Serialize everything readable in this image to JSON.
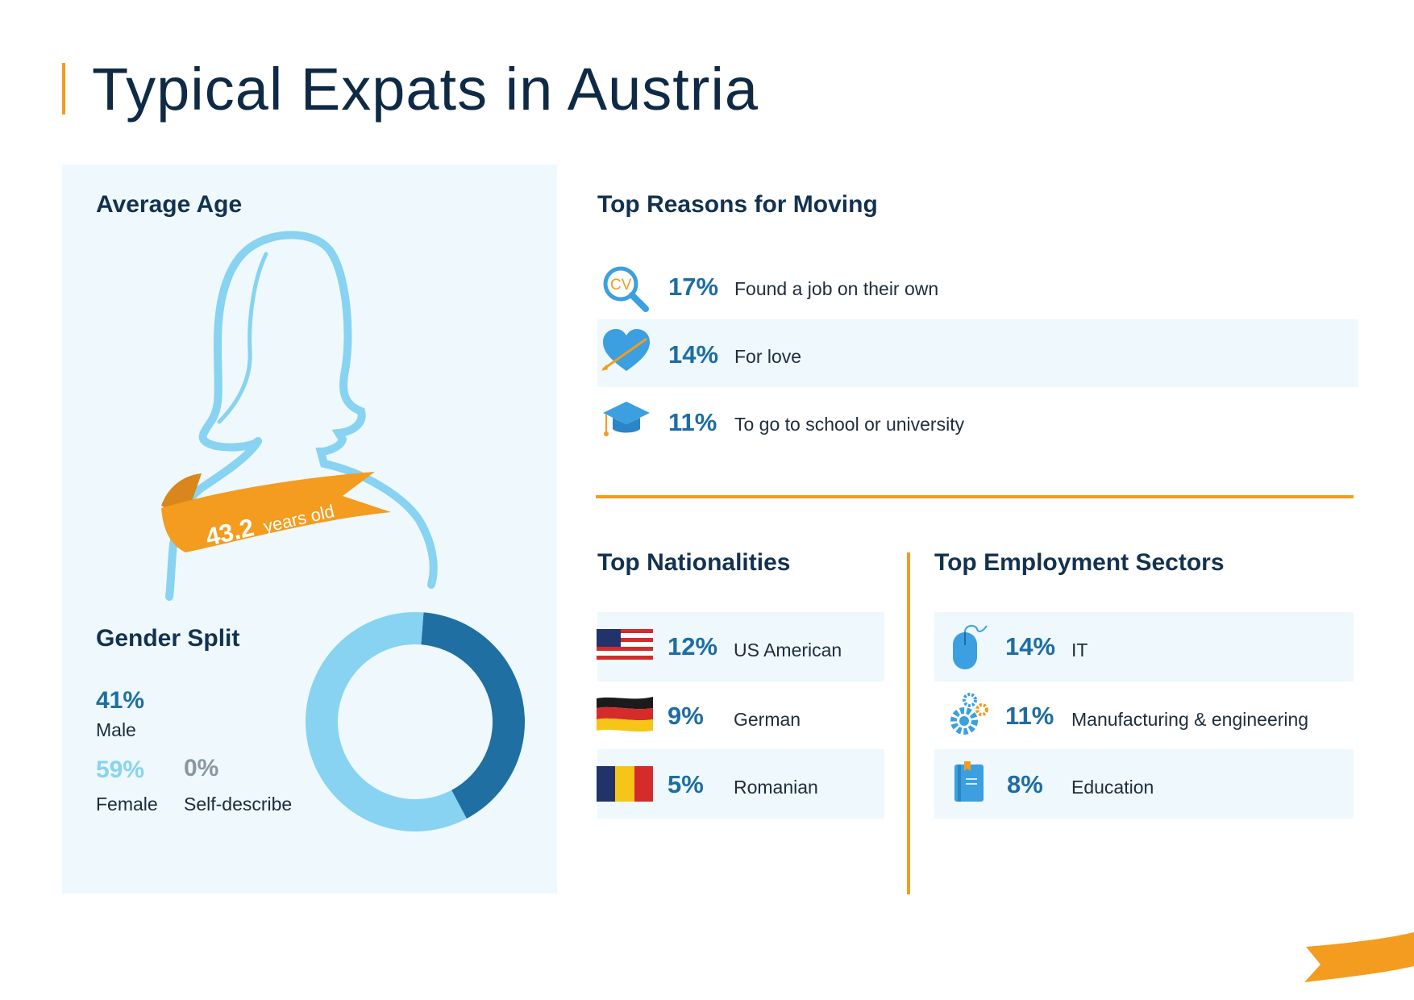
{
  "page": {
    "title": "Typical Expats in Austria"
  },
  "average_age": {
    "heading": "Average Age",
    "value": "43.2",
    "unit": "years old"
  },
  "gender": {
    "heading": "Gender Split",
    "items": [
      {
        "pct": "41%",
        "label": "Male"
      },
      {
        "pct": "59%",
        "label": "Female"
      },
      {
        "pct": "0%",
        "label": "Self-describe"
      }
    ]
  },
  "reasons": {
    "heading": "Top Reasons for Moving",
    "items": [
      {
        "pct": "17%",
        "label": "Found a job on their own",
        "icon": "cv-search-icon"
      },
      {
        "pct": "14%",
        "label": "For love",
        "icon": "heart-arrow-icon"
      },
      {
        "pct": "11%",
        "label": "To go to school or university",
        "icon": "graduation-cap-icon"
      }
    ]
  },
  "nationalities": {
    "heading": "Top Nationalities",
    "items": [
      {
        "pct": "12%",
        "label": "US American",
        "icon": "us-flag-icon"
      },
      {
        "pct": "9%",
        "label": "German",
        "icon": "germany-flag-icon"
      },
      {
        "pct": "5%",
        "label": "Romanian",
        "icon": "romania-flag-icon"
      }
    ]
  },
  "sectors": {
    "heading": "Top Employment Sectors",
    "items": [
      {
        "pct": "14%",
        "label": "IT",
        "icon": "computer-mouse-icon"
      },
      {
        "pct": "11%",
        "label": "Manufacturing & engineering",
        "icon": "gears-icon"
      },
      {
        "pct": "8%",
        "label": "Education",
        "icon": "book-icon"
      }
    ]
  },
  "colors": {
    "accent_orange": "#f39c1f",
    "male_blue": "#1f6fa3",
    "female_light_blue": "#87d3f1",
    "self_describe_grey": "#8a96a0",
    "panel_bg": "#eef8fd"
  },
  "chart_data": {
    "type": "pie",
    "title": "Gender Split",
    "categories": [
      "Male",
      "Female",
      "Self-describe"
    ],
    "values": [
      41,
      59,
      0
    ],
    "colors": [
      "#1f6fa3",
      "#87d3f1",
      "#8a96a0"
    ]
  }
}
